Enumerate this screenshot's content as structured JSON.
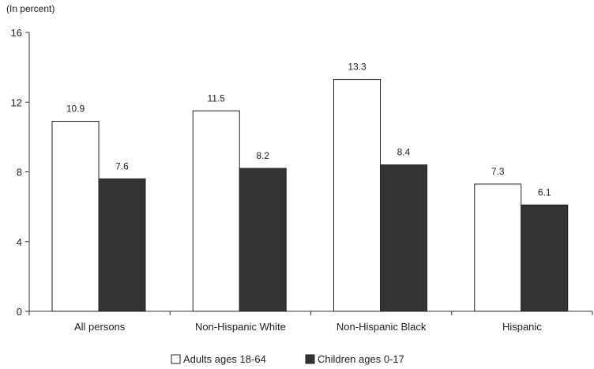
{
  "chart_data": {
    "type": "bar",
    "unit_label": "(In percent)",
    "title": "",
    "xlabel": "",
    "ylabel": "",
    "categories": [
      "All persons",
      "Non-Hispanic White",
      "Non-Hispanic Black",
      "Hispanic"
    ],
    "series": [
      {
        "name": "Adults ages 18-64",
        "values": [
          10.9,
          11.5,
          13.3,
          7.3
        ],
        "color": "#ffffff"
      },
      {
        "name": "Children ages 0-17",
        "values": [
          7.6,
          8.2,
          8.4,
          6.1
        ],
        "color": "#333333"
      }
    ],
    "ylim": [
      0,
      16
    ],
    "yticks": [
      0,
      4,
      8,
      12,
      16
    ],
    "ytick_labels": [
      "0",
      "4",
      "8",
      "12",
      "16"
    ],
    "data_labels": [
      [
        "10.9",
        "11.5",
        "13.3",
        "7.3"
      ],
      [
        "7.6",
        "8.2",
        "8.4",
        "6.1"
      ]
    ],
    "grid": false,
    "legend_position": "bottom-center"
  }
}
